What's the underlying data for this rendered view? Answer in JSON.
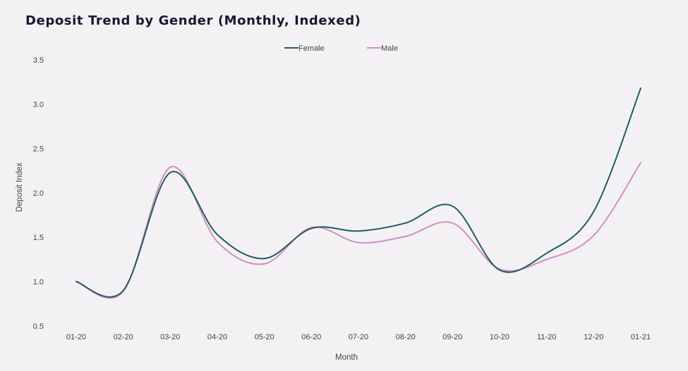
{
  "chart_data": {
    "type": "line",
    "title": "Deposit Trend by Gender (Monthly, Indexed)",
    "xlabel": "Month",
    "ylabel": "Deposit Index",
    "categories": [
      "01-20",
      "02-20",
      "03-20",
      "04-20",
      "05-20",
      "06-20",
      "07-20",
      "08-20",
      "09-20",
      "10-20",
      "11-20",
      "12-20",
      "01-21"
    ],
    "series": [
      {
        "name": "Female",
        "color": "#1e5e5e",
        "values": [
          1.0,
          0.9,
          2.23,
          1.53,
          1.26,
          1.6,
          1.57,
          1.66,
          1.85,
          1.13,
          1.32,
          1.79,
          3.18
        ]
      },
      {
        "name": "Male",
        "color": "#cf8fc4",
        "values": [
          1.0,
          0.89,
          2.29,
          1.45,
          1.2,
          1.61,
          1.44,
          1.51,
          1.66,
          1.14,
          1.25,
          1.52,
          2.34
        ]
      }
    ],
    "ylim": [
      0.5,
      3.5
    ],
    "yticks": [
      "0.5",
      "1.0",
      "1.5",
      "2.0",
      "2.5",
      "3.0",
      "3.5"
    ],
    "grid": false,
    "legend": "top-center"
  }
}
